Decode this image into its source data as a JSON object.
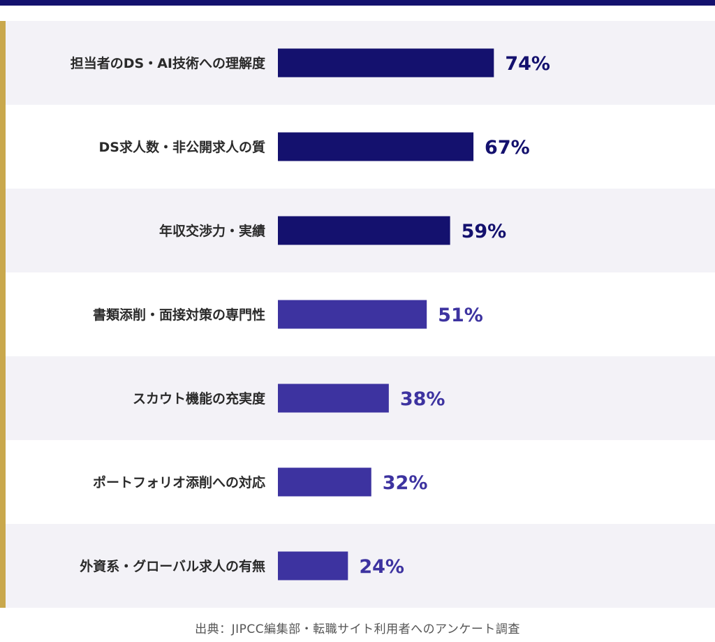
{
  "colors": {
    "dark_bar": "#14116e",
    "light_bar": "#3d33a0",
    "row_alt": "#f3f2f7",
    "label": "#2a2a2a",
    "accent": "#c9a84c"
  },
  "chart_data": {
    "type": "bar",
    "orientation": "horizontal",
    "categories": [
      "担当者のDS・AI技術への理解度",
      "DS求人数・非公開求人の質",
      "年収交渉力・実績",
      "書類添削・面接対策の専門性",
      "スカウト機能の充実度",
      "ポートフォリオ添削への対応",
      "外資系・グローバル求人の有無"
    ],
    "values": [
      74,
      67,
      59,
      51,
      38,
      32,
      24
    ],
    "value_labels": [
      "74%",
      "67%",
      "59%",
      "51%",
      "38%",
      "32%",
      "24%"
    ],
    "highlight": [
      true,
      true,
      true,
      false,
      false,
      false,
      false
    ],
    "xlim": [
      0,
      100
    ],
    "unit": "%",
    "grid": false
  },
  "footer": {
    "source": "出典：JIPCC編集部・転職サイト利用者へのアンケート調査"
  }
}
